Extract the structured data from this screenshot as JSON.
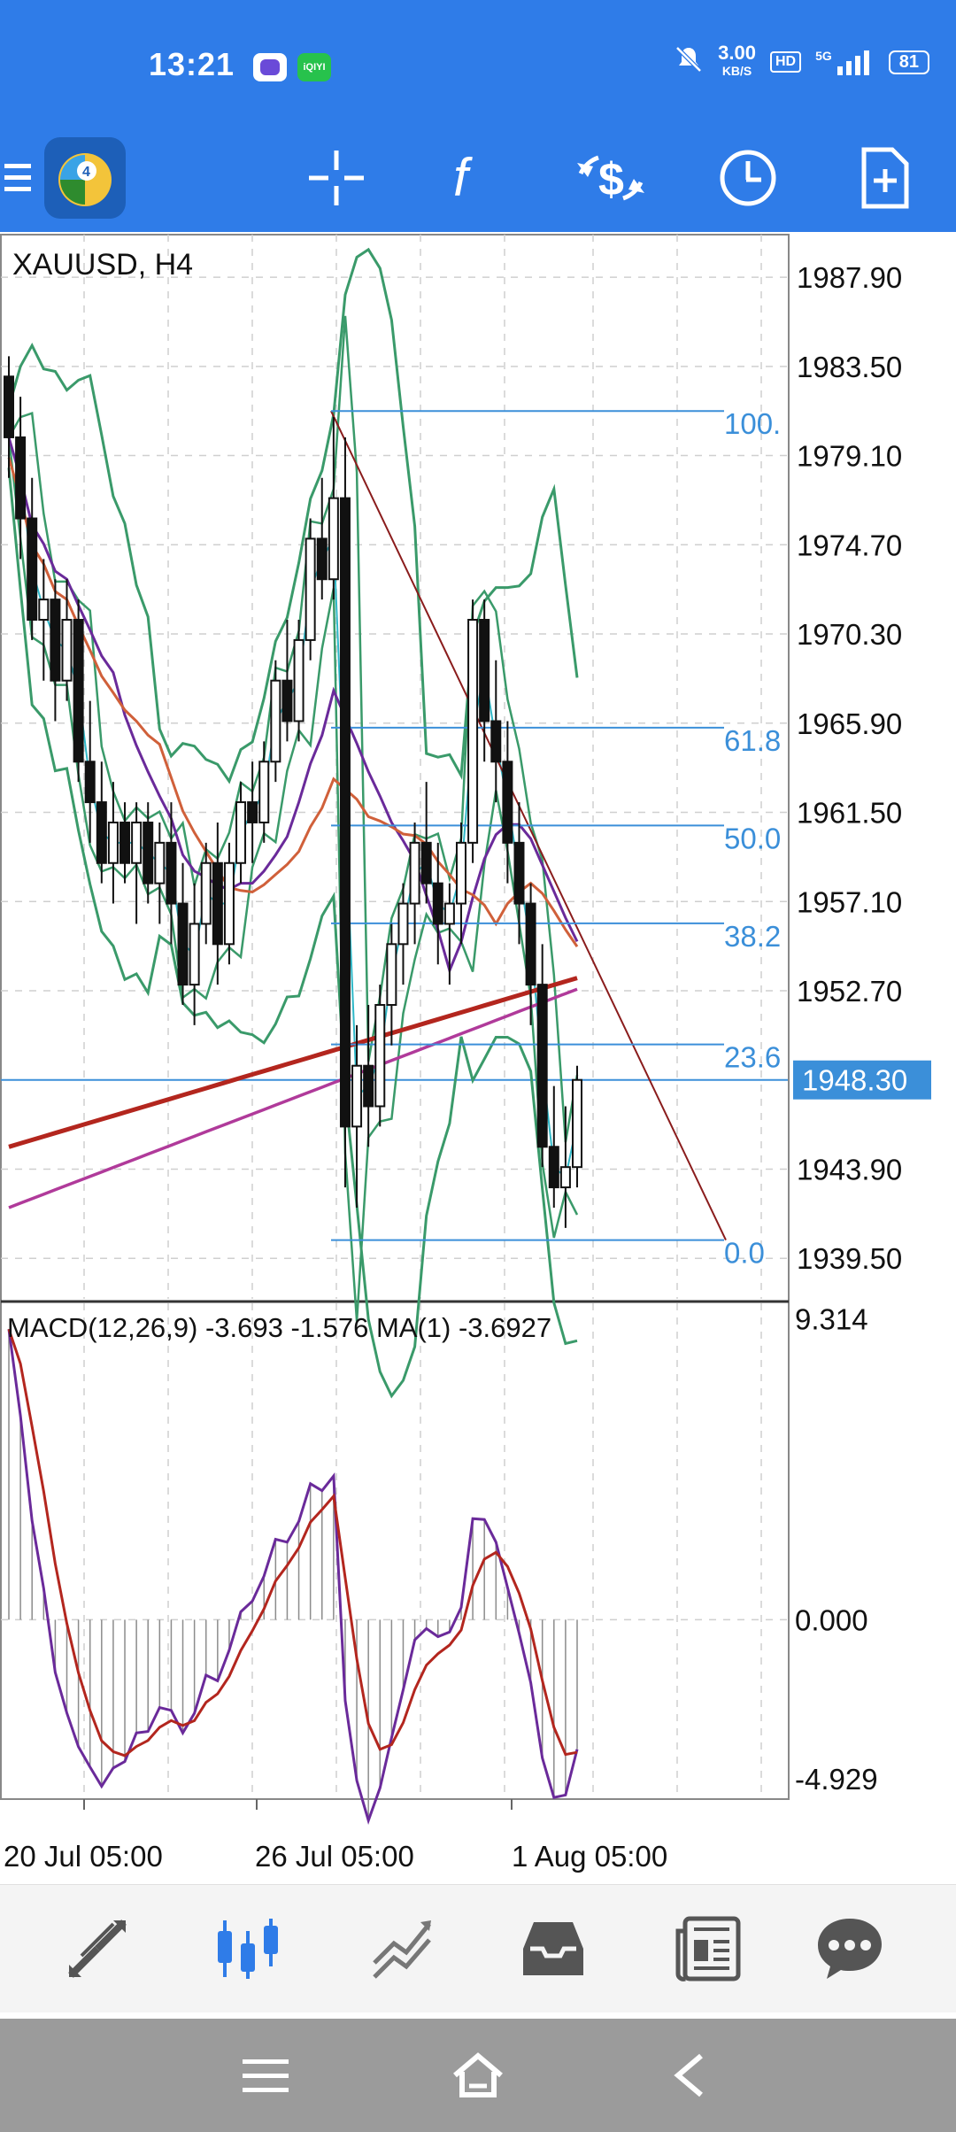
{
  "status_bar": {
    "time": "13:21",
    "net_speed_value": "3.00",
    "net_speed_unit": "KB/S",
    "hd_label": "HD",
    "signal_label": "5G",
    "battery": "81"
  },
  "toolbar": {
    "icons": [
      "menu-icon",
      "mt4-logo-icon",
      "crosshair-icon",
      "indicators-icon",
      "trade-icon",
      "timeframe-icon",
      "new-order-icon"
    ]
  },
  "chart": {
    "symbol_label": "XAUUSD, H4",
    "price_ticks": [
      "1987.90",
      "1983.50",
      "1979.10",
      "1974.70",
      "1970.30",
      "1965.90",
      "1961.50",
      "1957.10",
      "1952.70",
      "1948.30",
      "1943.90",
      "1939.50"
    ],
    "current_price": "1948.30",
    "fib_levels": [
      "100.",
      "61.8",
      "50.0",
      "38.2",
      "23.6",
      "0.0"
    ],
    "macd_label": "MACD(12,26,9) -3.693 -1.576 MA(1) -3.6927",
    "macd_ticks": [
      "9.314",
      "0.000",
      "-4.929"
    ],
    "date_ticks": [
      "20 Jul 05:00",
      "26 Jul 05:00",
      "1 Aug 05:00"
    ],
    "colors": {
      "bollinger": "#3a9a6a",
      "current_price_bg": "#3b8fd9",
      "fib_line": "#3b8fd9",
      "trend_line": "#8a1c1c",
      "ma_red": "#b3261e",
      "ma_purple": "#6a2a9a"
    }
  },
  "chart_data": {
    "type": "candlestick",
    "symbol": "XAUUSD",
    "timeframe": "H4",
    "ylim": [
      1937.5,
      1990.0
    ],
    "close_price": 1948.3,
    "fibonacci": {
      "high": 1981.3,
      "low": 1940.4,
      "levels": [
        "100.",
        "61.8",
        "50.0",
        "38.2",
        "23.6",
        "0.0"
      ]
    },
    "candles": [
      [
        1983,
        1984,
        1978,
        1980
      ],
      [
        1980,
        1982,
        1974,
        1976
      ],
      [
        1976,
        1978,
        1970,
        1971
      ],
      [
        1971,
        1974,
        1968,
        1972
      ],
      [
        1972,
        1973,
        1966,
        1968
      ],
      [
        1968,
        1973,
        1967,
        1971
      ],
      [
        1971,
        1972,
        1963,
        1964
      ],
      [
        1964,
        1967,
        1960,
        1962
      ],
      [
        1962,
        1964,
        1958,
        1959
      ],
      [
        1959,
        1963,
        1957,
        1961
      ],
      [
        1961,
        1962,
        1958,
        1959
      ],
      [
        1959,
        1962,
        1956,
        1961
      ],
      [
        1961,
        1962,
        1957,
        1958
      ],
      [
        1958,
        1961,
        1956,
        1960
      ],
      [
        1960,
        1962,
        1955,
        1957
      ],
      [
        1957,
        1959,
        1952,
        1953
      ],
      [
        1953,
        1958,
        1951,
        1956
      ],
      [
        1956,
        1960,
        1955,
        1959
      ],
      [
        1959,
        1961,
        1953,
        1955
      ],
      [
        1955,
        1960,
        1954,
        1959
      ],
      [
        1959,
        1963,
        1958,
        1962
      ],
      [
        1962,
        1964,
        1959,
        1961
      ],
      [
        1961,
        1965,
        1960,
        1964
      ],
      [
        1964,
        1969,
        1963,
        1968
      ],
      [
        1968,
        1971,
        1965,
        1966
      ],
      [
        1966,
        1971,
        1965,
        1970
      ],
      [
        1970,
        1976,
        1969,
        1975
      ],
      [
        1975,
        1978,
        1972,
        1973
      ],
      [
        1973,
        1981,
        1972,
        1977
      ],
      [
        1977,
        1980,
        1943,
        1946
      ],
      [
        1946,
        1951,
        1942,
        1949
      ],
      [
        1949,
        1952,
        1945,
        1947
      ],
      [
        1947,
        1953,
        1946,
        1952
      ],
      [
        1952,
        1956,
        1950,
        1955
      ],
      [
        1955,
        1958,
        1953,
        1957
      ],
      [
        1957,
        1961,
        1955,
        1960
      ],
      [
        1960,
        1963,
        1957,
        1958
      ],
      [
        1958,
        1960,
        1954,
        1956
      ],
      [
        1956,
        1958,
        1953,
        1957
      ],
      [
        1957,
        1961,
        1955,
        1960
      ],
      [
        1960,
        1972,
        1959,
        1971
      ],
      [
        1971,
        1972,
        1964,
        1966
      ],
      [
        1966,
        1969,
        1962,
        1964
      ],
      [
        1964,
        1966,
        1958,
        1960
      ],
      [
        1960,
        1962,
        1955,
        1957
      ],
      [
        1957,
        1958,
        1951,
        1953
      ],
      [
        1953,
        1955,
        1944,
        1945
      ],
      [
        1945,
        1948,
        1942,
        1943
      ],
      [
        1943,
        1947,
        1941,
        1944
      ],
      [
        1944,
        1949,
        1943,
        1948.3
      ]
    ],
    "macd": {
      "ylim": [
        -5.5,
        9.8
      ],
      "zero": 0.0
    }
  }
}
